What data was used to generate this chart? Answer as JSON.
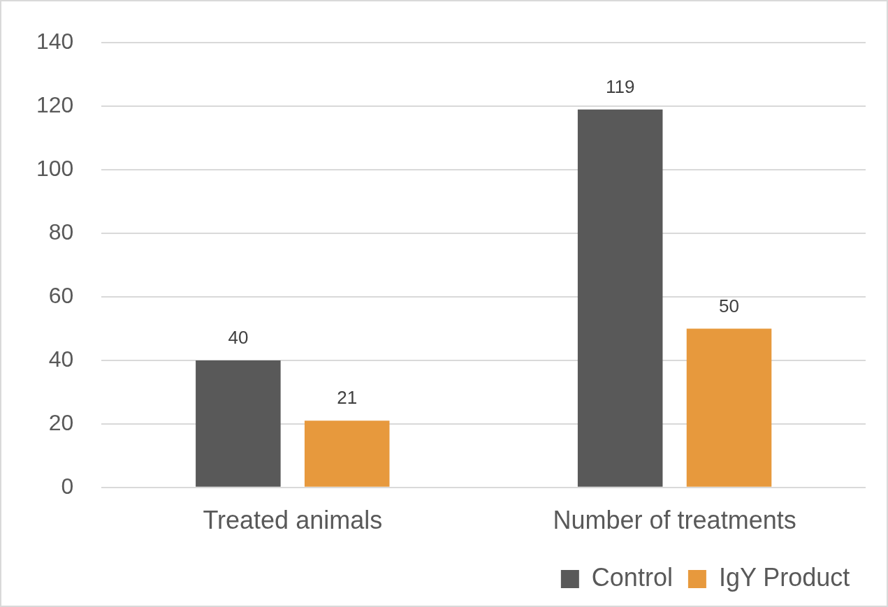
{
  "chart_data": {
    "type": "bar",
    "categories": [
      "Treated animals",
      "Number of treatments"
    ],
    "series": [
      {
        "name": "Control",
        "color": "#595959",
        "values": [
          40,
          119
        ]
      },
      {
        "name": "IgY Product",
        "color": "#e7993d",
        "values": [
          21,
          50
        ]
      }
    ],
    "ylim": [
      0,
      140
    ],
    "yticks": [
      0,
      20,
      40,
      60,
      80,
      100,
      120,
      140
    ],
    "grid": "y",
    "legend": "bottom right",
    "data_labels": true
  }
}
